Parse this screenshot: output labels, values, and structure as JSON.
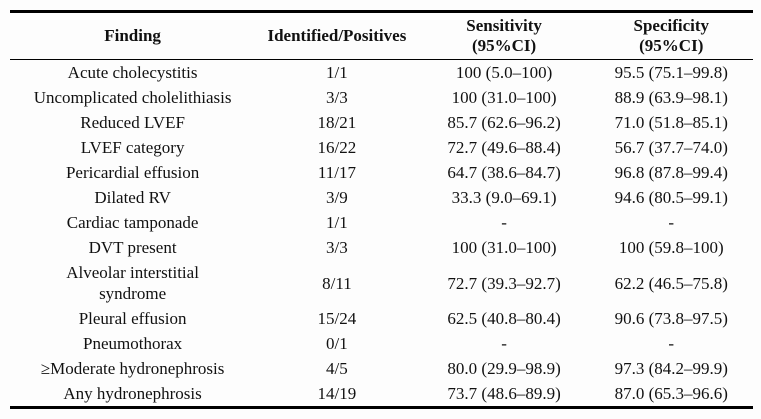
{
  "colors": {
    "background": "#fdfdfd",
    "text": "#111111",
    "rule": "#000000"
  },
  "table": {
    "header": {
      "finding": "Finding",
      "identified": "Identified/Positives",
      "sensitivity": "Sensitivity",
      "sensitivity_sub": "(95%CI)",
      "specificity": "Specificity",
      "specificity_sub": "(95%CI)"
    },
    "rows": [
      {
        "finding": "Acute cholecystitis",
        "identified": "1/1",
        "sensitivity": "100 (5.0–100)",
        "specificity": "95.5 (75.1–99.8)"
      },
      {
        "finding": "Uncomplicated cholelithiasis",
        "identified": "3/3",
        "sensitivity": "100 (31.0–100)",
        "specificity": "88.9 (63.9–98.1)"
      },
      {
        "finding": "Reduced LVEF",
        "identified": "18/21",
        "sensitivity": "85.7 (62.6–96.2)",
        "specificity": "71.0 (51.8–85.1)"
      },
      {
        "finding": "LVEF category",
        "identified": "16/22",
        "sensitivity": "72.7 (49.6–88.4)",
        "specificity": "56.7 (37.7–74.0)"
      },
      {
        "finding": "Pericardial effusion",
        "identified": "11/17",
        "sensitivity": "64.7 (38.6–84.7)",
        "specificity": "96.8 (87.8–99.4)"
      },
      {
        "finding": "Dilated RV",
        "identified": "3/9",
        "sensitivity": "33.3 (9.0–69.1)",
        "specificity": "94.6 (80.5–99.1)"
      },
      {
        "finding": "Cardiac tamponade",
        "identified": "1/1",
        "sensitivity": "-",
        "specificity": "-"
      },
      {
        "finding": "DVT present",
        "identified": "3/3",
        "sensitivity": "100 (31.0–100)",
        "specificity": "100 (59.8–100)"
      },
      {
        "finding": "Alveolar interstitial\nsyndrome",
        "identified": "8/11",
        "sensitivity": "72.7 (39.3–92.7)",
        "specificity": "62.2 (46.5–75.8)"
      },
      {
        "finding": "Pleural effusion",
        "identified": "15/24",
        "sensitivity": "62.5 (40.8–80.4)",
        "specificity": "90.6 (73.8–97.5)"
      },
      {
        "finding": "Pneumothorax",
        "identified": "0/1",
        "sensitivity": "-",
        "specificity": "-"
      },
      {
        "finding": "≥Moderate hydronephrosis",
        "identified": "4/5",
        "sensitivity": "80.0 (29.9–98.9)",
        "specificity": "97.3 (84.2–99.9)"
      },
      {
        "finding": "Any hydronephrosis",
        "identified": "14/19",
        "sensitivity": "73.7 (48.6–89.9)",
        "specificity": "87.0 (65.3–96.6)"
      }
    ]
  }
}
